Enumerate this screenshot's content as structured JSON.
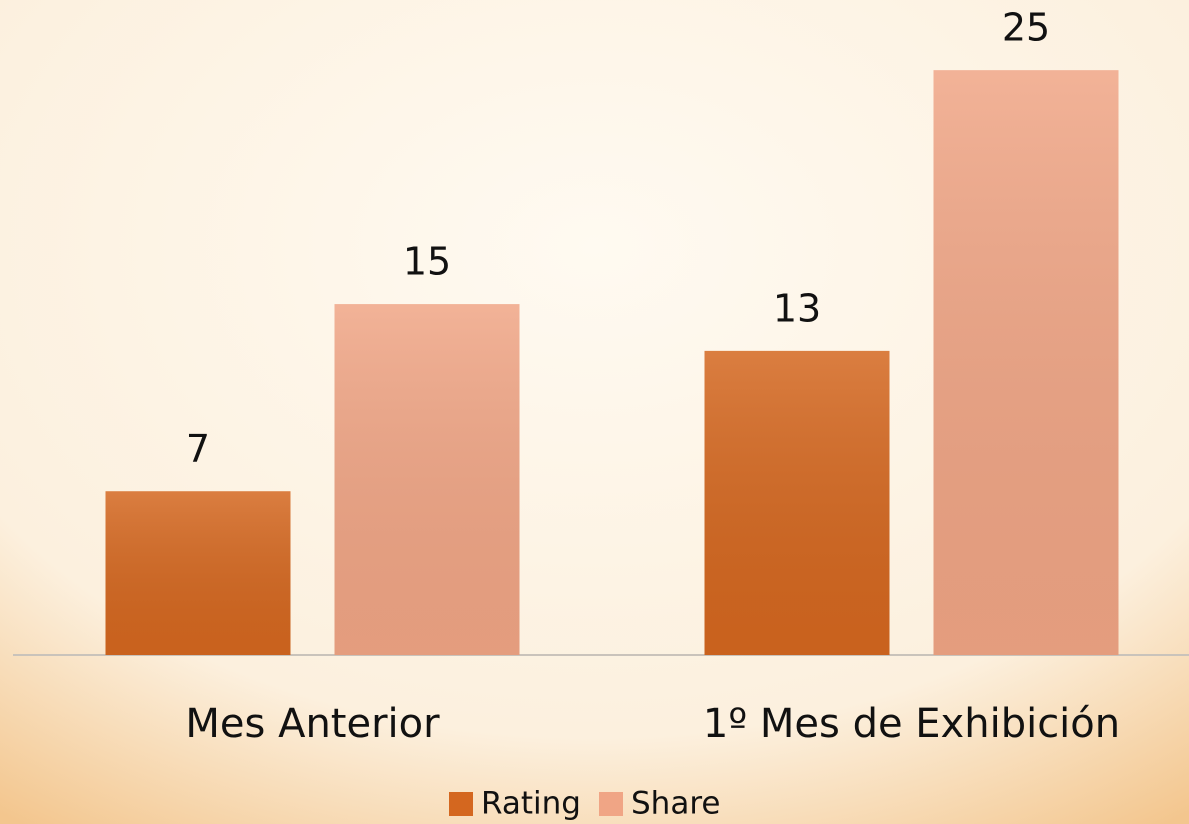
{
  "chart_data": {
    "type": "bar",
    "categories": [
      "Mes Anterior",
      "1º Mes de Exhibición"
    ],
    "series": [
      {
        "name": "Rating",
        "color": "#d4671f",
        "values": [
          7,
          13
        ]
      },
      {
        "name": "Share",
        "color": "#f0a585",
        "values": [
          15,
          25
        ]
      }
    ],
    "ylim": [
      0,
      28
    ],
    "legend": "bottom"
  }
}
